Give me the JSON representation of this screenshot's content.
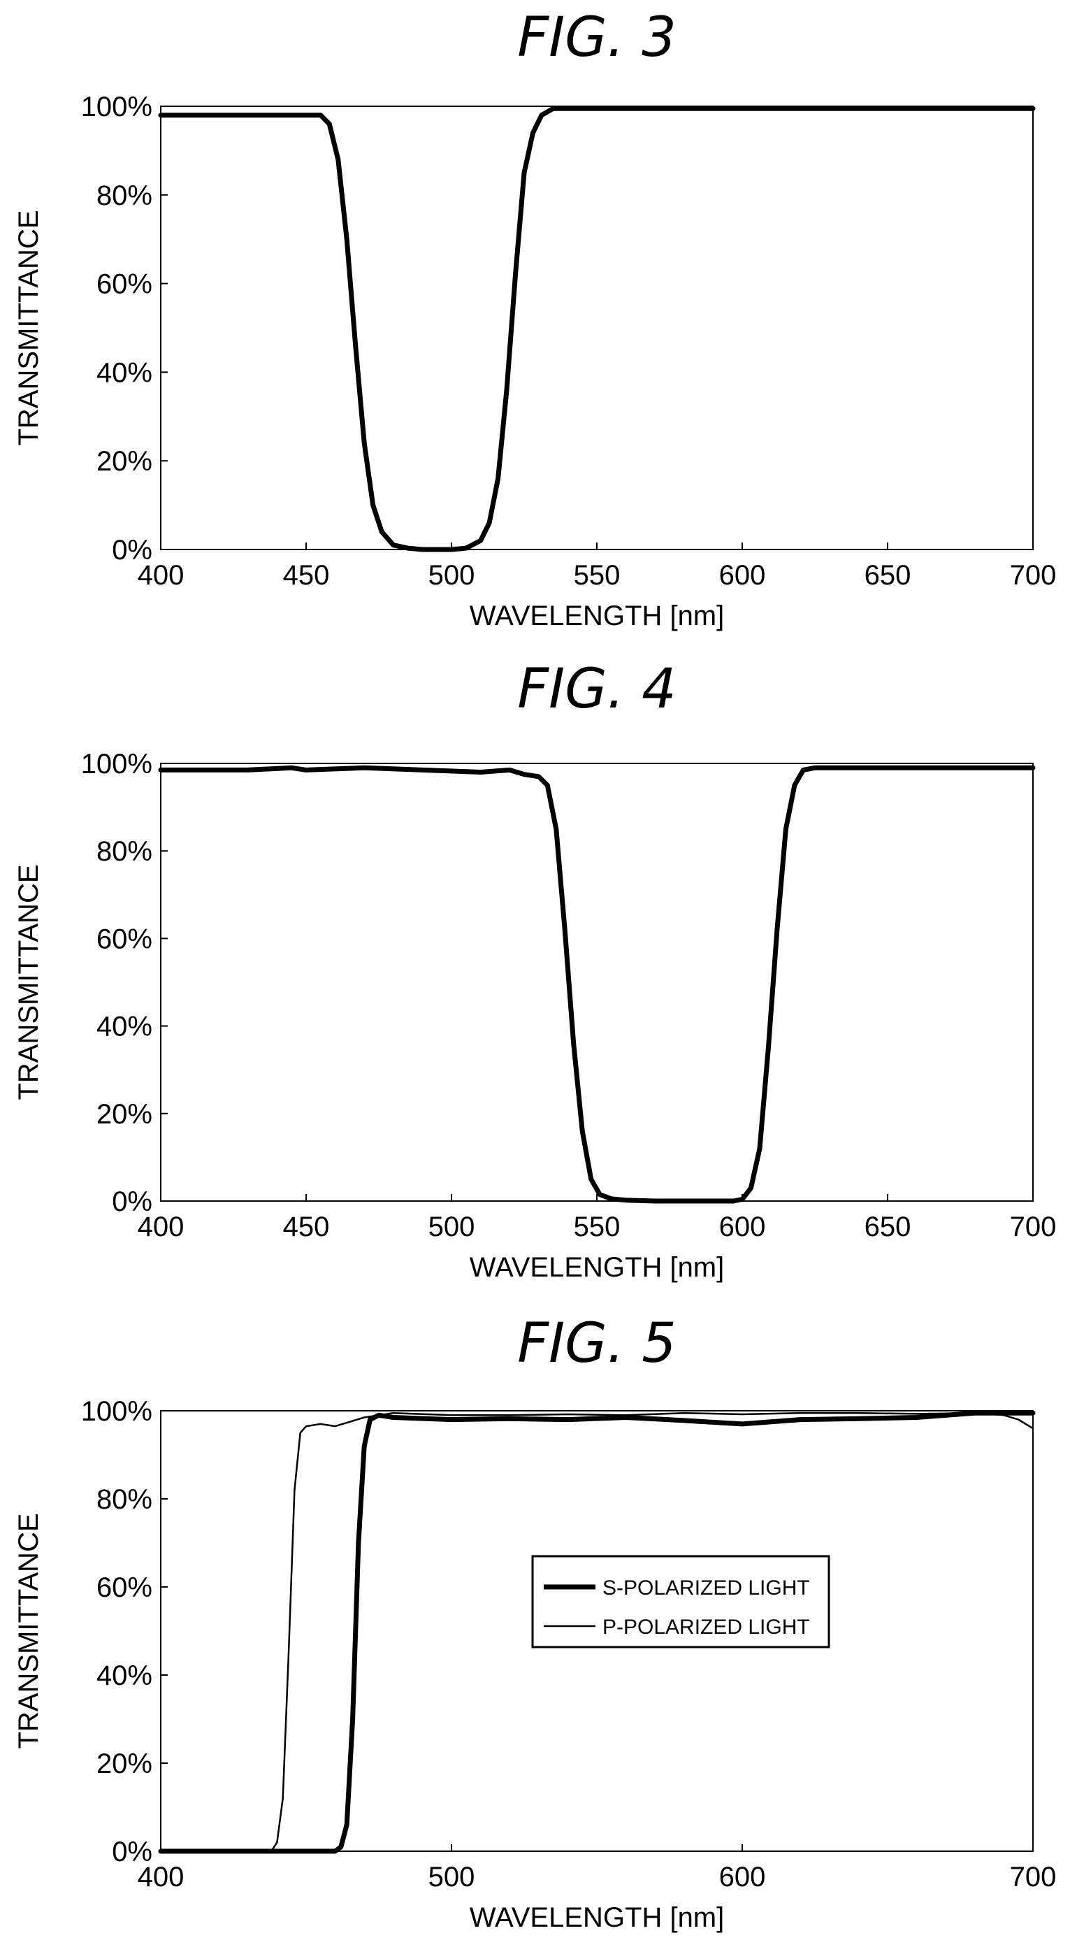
{
  "chart_data": [
    {
      "type": "line",
      "title": "FIG. 3",
      "xlabel": "WAVELENGTH [nm]",
      "ylabel": "TRANSMITTANCE",
      "xlim": [
        400,
        700
      ],
      "ylim": [
        0,
        100
      ],
      "xticks": [
        "400",
        "450",
        "500",
        "550",
        "600",
        "650",
        "700"
      ],
      "yticks": [
        "0%",
        "20%",
        "40%",
        "60%",
        "80%",
        "100%"
      ],
      "grid": false,
      "series": [
        {
          "name": "",
          "x": [
            400,
            455,
            458,
            461,
            464,
            467,
            470,
            473,
            476,
            480,
            485,
            490,
            495,
            500,
            505,
            510,
            513,
            516,
            519,
            522,
            525,
            528,
            531,
            535,
            540,
            600,
            700
          ],
          "y": [
            98,
            98,
            96,
            88,
            70,
            46,
            24,
            10,
            4,
            1,
            0.3,
            0,
            0,
            0,
            0.3,
            2,
            6,
            16,
            36,
            62,
            85,
            94,
            98,
            99.5,
            99.5,
            99.5,
            99.5
          ]
        }
      ]
    },
    {
      "type": "line",
      "title": "FIG. 4",
      "xlabel": "WAVELENGTH [nm]",
      "ylabel": "TRANSMITTANCE",
      "xlim": [
        400,
        700
      ],
      "ylim": [
        0,
        100
      ],
      "xticks": [
        "400",
        "450",
        "500",
        "550",
        "600",
        "650",
        "700"
      ],
      "yticks": [
        "0%",
        "20%",
        "40%",
        "60%",
        "80%",
        "100%"
      ],
      "grid": false,
      "series": [
        {
          "name": "",
          "x": [
            400,
            430,
            445,
            450,
            470,
            490,
            510,
            520,
            525,
            530,
            533,
            536,
            539,
            542,
            545,
            548,
            551,
            555,
            560,
            570,
            580,
            590,
            597,
            600,
            603,
            606,
            609,
            612,
            615,
            618,
            621,
            625,
            640,
            700
          ],
          "y": [
            98.5,
            98.5,
            99,
            98.5,
            99,
            98.5,
            98,
            98.5,
            97.5,
            97,
            95,
            85,
            62,
            36,
            16,
            5,
            1.5,
            0.5,
            0.2,
            0,
            0,
            0,
            0,
            0.4,
            3,
            12,
            35,
            62,
            85,
            95,
            98.5,
            99,
            99,
            99
          ]
        }
      ]
    },
    {
      "type": "line",
      "title": "FIG. 5",
      "xlabel": "WAVELENGTH [nm]",
      "ylabel": "TRANSMITTANCE",
      "xlim": [
        400,
        700
      ],
      "ylim": [
        0,
        100
      ],
      "xticks": [
        "400",
        "500",
        "600",
        "700"
      ],
      "yticks": [
        "0%",
        "20%",
        "40%",
        "60%",
        "80%",
        "100%"
      ],
      "grid": false,
      "legend": "center-right",
      "series": [
        {
          "name": "S-POLARIZED LIGHT",
          "line": "thick",
          "x": [
            400,
            460,
            462,
            464,
            466,
            468,
            470,
            472,
            475,
            480,
            500,
            520,
            540,
            560,
            580,
            600,
            620,
            640,
            660,
            680,
            700
          ],
          "y": [
            0,
            0,
            1,
            6,
            30,
            70,
            92,
            98,
            99,
            98.5,
            98,
            98.2,
            98,
            98.5,
            97.8,
            97,
            98,
            98.2,
            98.5,
            99.5,
            99.5
          ]
        },
        {
          "name": "P-POLARIZED LIGHT",
          "line": "thin",
          "x": [
            400,
            438,
            440,
            442,
            444,
            446,
            448,
            450,
            455,
            460,
            465,
            470,
            480,
            500,
            520,
            540,
            560,
            580,
            600,
            620,
            640,
            660,
            680,
            690,
            695,
            700
          ],
          "y": [
            0,
            0,
            2,
            12,
            45,
            82,
            95,
            96.5,
            97,
            96.5,
            97.5,
            98.5,
            99.5,
            99,
            99,
            99.2,
            99,
            99.5,
            99.2,
            99.5,
            99.5,
            99.3,
            99.5,
            99,
            98,
            96
          ]
        }
      ]
    }
  ]
}
